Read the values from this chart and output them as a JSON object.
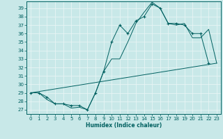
{
  "xlabel": "Humidex (Indice chaleur)",
  "bg_color": "#c8e8e8",
  "grid_color": "#e8f4f4",
  "line_color": "#006060",
  "xlim": [
    -0.5,
    23.5
  ],
  "ylim": [
    26.5,
    39.8
  ],
  "yticks": [
    27,
    28,
    29,
    30,
    31,
    32,
    33,
    34,
    35,
    36,
    37,
    38,
    39
  ],
  "xticks": [
    0,
    1,
    2,
    3,
    4,
    5,
    6,
    7,
    8,
    9,
    10,
    11,
    12,
    13,
    14,
    15,
    16,
    17,
    18,
    19,
    20,
    21,
    22,
    23
  ],
  "series1_x": [
    0,
    1,
    2,
    3,
    4,
    5,
    6,
    7,
    8,
    9,
    10,
    11,
    12,
    13,
    14,
    15,
    16,
    17,
    18,
    19,
    20,
    21,
    22
  ],
  "series1_y": [
    29,
    29,
    28.5,
    27.7,
    27.7,
    27.5,
    27.5,
    27.0,
    29.0,
    31.5,
    35.0,
    37.0,
    36.0,
    37.5,
    38.0,
    39.5,
    39.0,
    37.2,
    37.2,
    37.0,
    36.0,
    36.0,
    32.5
  ],
  "series2_x": [
    0,
    1,
    2,
    3,
    4,
    5,
    6,
    7,
    8,
    9,
    10,
    11,
    12,
    13,
    14,
    15,
    16,
    17,
    18,
    19,
    20,
    21,
    22,
    23
  ],
  "series2_y": [
    29,
    29,
    28.2,
    27.7,
    27.7,
    27.2,
    27.3,
    27.0,
    29.0,
    31.5,
    33.0,
    33.0,
    35.0,
    37.2,
    38.5,
    39.7,
    39.0,
    37.2,
    37.0,
    37.2,
    35.5,
    35.5,
    36.5,
    32.5
  ],
  "series3_x": [
    0,
    23
  ],
  "series3_y": [
    29,
    32.5
  ]
}
